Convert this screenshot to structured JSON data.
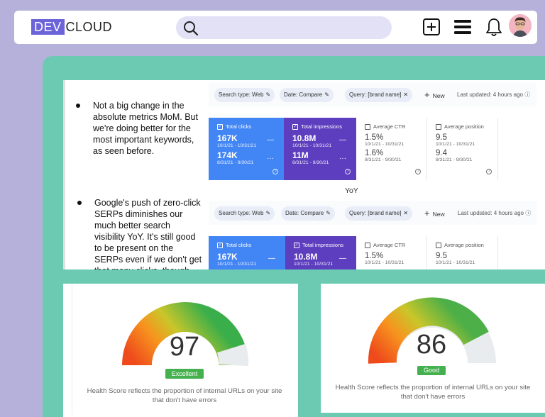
{
  "topbar": {
    "logo_dev": "DEV",
    "logo_cloud": "CLOUD",
    "search_placeholder": ""
  },
  "slide": {
    "bullet1": "Not a big change in the absolute metrics MoM. But we're doing better for the most important keywords, as seen before.",
    "bullet2": "Google's push of zero-click SERPs diminishes our much better search visibility YoY. It's still good to be present on the SERPs even if we don't get that many clicks, though.",
    "yoy_label": "YoY"
  },
  "gsc_top": {
    "chips": [
      "Search type: Web",
      "Date: Compare",
      "Query: [brand name]"
    ],
    "new_label": "New",
    "updated": "Last updated: 4 hours ago",
    "cards": [
      {
        "label": "Total clicks",
        "v1": "167K",
        "d1": "10/1/21 - 10/31/21",
        "v2": "174K",
        "d2": "8/31/21 - 9/30/21"
      },
      {
        "label": "Total impressions",
        "v1": "10.8M",
        "d1": "10/1/21 - 10/31/21",
        "v2": "11M",
        "d2": "8/31/21 - 9/30/21"
      },
      {
        "label": "Average CTR",
        "v1": "1.5%",
        "d1": "10/1/21 - 10/31/21",
        "v2": "1.6%",
        "d2": "8/31/21 - 9/30/21"
      },
      {
        "label": "Average position",
        "v1": "9.5",
        "d1": "10/1/21 - 10/31/21",
        "v2": "9.4",
        "d2": "8/31/21 - 9/30/21"
      }
    ]
  },
  "gsc_bottom": {
    "chips": [
      "Search type: Web",
      "Date: Compare",
      "Query: [brand name]"
    ],
    "new_label": "New",
    "updated": "Last updated: 4 hours ago",
    "cards": [
      {
        "label": "Total clicks",
        "v1": "167K",
        "d1": "10/1/21 - 10/31/21"
      },
      {
        "label": "Total impressions",
        "v1": "10.8M",
        "d1": "10/1/21 - 10/31/21"
      },
      {
        "label": "Average CTR",
        "v1": "1.5%",
        "d1": "10/1/21 - 10/31/21"
      },
      {
        "label": "Average position",
        "v1": "9.5",
        "d1": "10/1/21 - 10/31/21"
      }
    ]
  },
  "score1": {
    "value": "97",
    "badge": "Excellent",
    "caption": "Health Score reflects the proportion of internal URLs on your site that don't have errors"
  },
  "score2": {
    "value": "86",
    "badge": "Good",
    "caption": "Health Score reflects the proportion of internal URLs on your site that don't have errors"
  },
  "colors": {
    "accent": "#6c63d8",
    "panel": "#6ccab3",
    "background": "#b5b1da",
    "clicks": "#4285f4",
    "impressions": "#5d3ebf"
  }
}
